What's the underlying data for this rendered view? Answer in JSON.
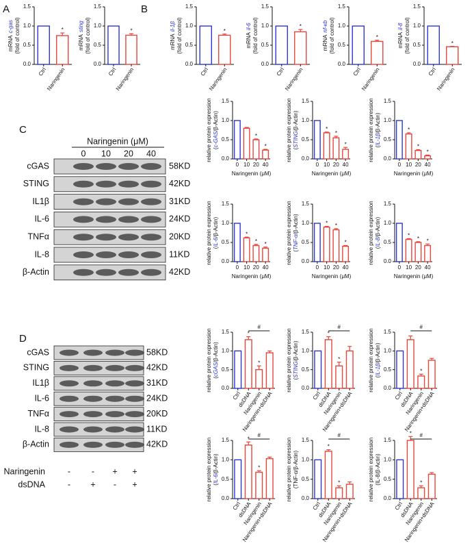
{
  "panels": [
    "A",
    "B",
    "C",
    "D"
  ],
  "blot_c": {
    "header": "Naringenin (μM)",
    "lanes": [
      "0",
      "10",
      "20",
      "40"
    ],
    "rows": [
      {
        "protein": "cGAS",
        "size": "58KD"
      },
      {
        "protein": "STING",
        "size": "42KD"
      },
      {
        "protein": "IL1β",
        "size": "31KD"
      },
      {
        "protein": "IL-6",
        "size": "24KD"
      },
      {
        "protein": "TNFα",
        "size": "20KD"
      },
      {
        "protein": "IL-8",
        "size": "11KD"
      },
      {
        "protein": "β-Actin",
        "size": "42KD"
      }
    ]
  },
  "blot_d": {
    "rows": [
      {
        "protein": "cGAS",
        "size": "58KD"
      },
      {
        "protein": "STING",
        "size": "42KD"
      },
      {
        "protein": "IL1β",
        "size": "31KD"
      },
      {
        "protein": "IL-6",
        "size": "24KD"
      },
      {
        "protein": "TNFα",
        "size": "20KD"
      },
      {
        "protein": "IL-8",
        "size": "11KD"
      },
      {
        "protein": "β-Actin",
        "size": "42KD"
      }
    ],
    "treatments": [
      {
        "name": "Naringenin",
        "signs": [
          "-",
          "-",
          "+",
          "+"
        ]
      },
      {
        "name": "dsDNA",
        "signs": [
          "-",
          "+",
          "-",
          "+"
        ]
      }
    ]
  },
  "chart_data": [
    {
      "type": "bar",
      "ylabel": [
        [
          {
            "text": "mRNA"
          },
          {
            "text": "c-gas",
            "italic": true
          }
        ],
        [
          {
            "text": "(fold of control)"
          }
        ]
      ],
      "categories": [
        "Ctrl",
        "Naringenin"
      ],
      "values": [
        1,
        0.75
      ],
      "errors": [
        0,
        0.07
      ],
      "significance": [
        null,
        "*"
      ],
      "colors": [
        "#2b35d8",
        "#e8443a"
      ],
      "ylim": [
        0,
        1.5
      ],
      "yticks": [
        {
          "value": 0,
          "label": "0.0"
        },
        0.5,
        {
          "value": 1,
          "label": "1.0"
        },
        1.5
      ]
    },
    {
      "type": "bar",
      "ylabel": [
        [
          {
            "text": "mRNA"
          },
          {
            "text": "sting",
            "italic": true
          }
        ],
        [
          {
            "text": "(fold of control)"
          }
        ]
      ],
      "categories": [
        "Ctrl",
        "Naringenin"
      ],
      "values": [
        1,
        0.76
      ],
      "errors": [
        0,
        0.04
      ],
      "significance": [
        null,
        "*"
      ],
      "colors": [
        "#2b35d8",
        "#e8443a"
      ],
      "ylim": [
        0,
        1.5
      ],
      "yticks": [
        {
          "value": 0,
          "label": "0.0"
        },
        0.5,
        {
          "value": 1,
          "label": "1.0"
        },
        1.5
      ]
    },
    {
      "type": "bar",
      "ylabel": [
        [
          {
            "text": "mRNA"
          },
          {
            "text": "il-1β",
            "italic": true
          }
        ],
        [
          {
            "text": "(fold of control)"
          }
        ]
      ],
      "categories": [
        "Ctrl",
        "Naringenin"
      ],
      "values": [
        1,
        0.76
      ],
      "errors": [
        0,
        0.03
      ],
      "significance": [
        null,
        "*"
      ],
      "colors": [
        "#2b35d8",
        "#e8443a"
      ],
      "ylim": [
        0,
        1.5
      ],
      "yticks": [
        {
          "value": 0,
          "label": "0.0"
        },
        0.5,
        {
          "value": 1,
          "label": "1.0"
        },
        1.5
      ]
    },
    {
      "type": "bar",
      "ylabel": [
        [
          {
            "text": "mRNA"
          },
          {
            "text": "il-6",
            "italic": true
          }
        ],
        [
          {
            "text": "(fold of control)"
          }
        ]
      ],
      "categories": [
        "Ctrl",
        "Naringenin"
      ],
      "values": [
        1,
        0.85
      ],
      "errors": [
        0,
        0.06
      ],
      "significance": [
        null,
        "*"
      ],
      "colors": [
        "#2b35d8",
        "#e8443a"
      ],
      "ylim": [
        0,
        1.5
      ],
      "yticks": [
        {
          "value": 0,
          "label": "0.0"
        },
        0.5,
        {
          "value": 1,
          "label": "1.0"
        },
        1.5
      ]
    },
    {
      "type": "bar",
      "ylabel": [
        [
          {
            "text": "mRNA"
          },
          {
            "text": "nf-κb",
            "italic": true
          }
        ],
        [
          {
            "text": "(fold of control)"
          }
        ]
      ],
      "categories": [
        "Ctrl",
        "Naringenin"
      ],
      "values": [
        1,
        0.6
      ],
      "errors": [
        0,
        0.03
      ],
      "significance": [
        null,
        "*"
      ],
      "colors": [
        "#2b35d8",
        "#e8443a"
      ],
      "ylim": [
        0,
        1.5
      ],
      "yticks": [
        {
          "value": 0,
          "label": "0.0"
        },
        0.5,
        {
          "value": 1,
          "label": "1.0"
        },
        1.5
      ]
    },
    {
      "type": "bar",
      "ylabel": [
        [
          {
            "text": "mRNA"
          },
          {
            "text": "il-8",
            "italic": true
          }
        ],
        [
          {
            "text": "(fold of control)"
          }
        ]
      ],
      "categories": [
        "Ctrl",
        "Naringenin"
      ],
      "values": [
        1,
        0.46
      ],
      "errors": [
        0,
        0.01
      ],
      "significance": [
        null,
        "*"
      ],
      "colors": [
        "#2b35d8",
        "#e8443a"
      ],
      "ylim": [
        0,
        1.5
      ],
      "yticks": [
        {
          "value": 0,
          "label": "0.0"
        },
        0.5,
        {
          "value": 1,
          "label": "1.0"
        },
        1.5
      ]
    },
    {
      "type": "bar",
      "ylabel": [
        [
          {
            "text": "relative protein expression"
          }
        ],
        [
          {
            "text": "("
          },
          {
            "text": "c-GAS",
            "italic": true
          },
          {
            "text": "/β-Actin)"
          }
        ]
      ],
      "xlabel": "Naringenin (μM)",
      "categories": [
        "0",
        "10",
        "20",
        "40"
      ],
      "values": [
        1,
        0.8,
        0.5,
        0.23
      ],
      "errors": [
        0,
        0.02,
        0.02,
        0.02
      ],
      "significance": [
        null,
        null,
        "*",
        "*"
      ],
      "colors": [
        "#2b35d8",
        "#e8443a",
        "#e8443a",
        "#e8443a"
      ],
      "ylim": [
        0,
        1.5
      ],
      "yticks": [
        {
          "value": 0,
          "label": "0.0"
        },
        0.5,
        {
          "value": 1,
          "label": "1.0"
        },
        1.5
      ]
    },
    {
      "type": "bar",
      "ylabel": [
        [
          {
            "text": "relative protein expression"
          }
        ],
        [
          {
            "text": "("
          },
          {
            "text": "STING",
            "italic": true
          },
          {
            "text": "/β-Actin)"
          }
        ]
      ],
      "xlabel": "Naringenin (μM)",
      "categories": [
        "0",
        "10",
        "20",
        "40"
      ],
      "values": [
        1,
        0.68,
        0.55,
        0.25
      ],
      "errors": [
        0,
        0.02,
        0.04,
        0.05
      ],
      "significance": [
        null,
        "*",
        "*",
        "*"
      ],
      "colors": [
        "#2b35d8",
        "#e8443a",
        "#e8443a",
        "#e8443a"
      ],
      "ylim": [
        0,
        1.5
      ],
      "yticks": [
        {
          "value": 0,
          "label": "0.0"
        },
        0.5,
        {
          "value": 1,
          "label": "1.0"
        },
        1.5
      ]
    },
    {
      "type": "bar",
      "ylabel": [
        [
          {
            "text": "relative protein expression"
          }
        ],
        [
          {
            "text": "("
          },
          {
            "text": "IL-1β",
            "italic": true
          },
          {
            "text": "/β-Actin)"
          }
        ]
      ],
      "xlabel": "Naringenin (μM)",
      "categories": [
        "0",
        "10",
        "20",
        "40"
      ],
      "values": [
        1,
        0.65,
        0.22,
        0.08
      ],
      "errors": [
        0,
        0.03,
        0.02,
        0.02
      ],
      "significance": [
        null,
        "*",
        "*",
        "*"
      ],
      "colors": [
        "#2b35d8",
        "#e8443a",
        "#e8443a",
        "#e8443a"
      ],
      "ylim": [
        0,
        1.5
      ],
      "yticks": [
        {
          "value": 0,
          "label": "0.0"
        },
        0.5,
        {
          "value": 1,
          "label": "1.0"
        },
        1.5
      ]
    },
    {
      "type": "bar",
      "ylabel": [
        [
          {
            "text": "relative protein expression"
          }
        ],
        [
          {
            "text": "("
          },
          {
            "text": "IL-6",
            "italic": true
          },
          {
            "text": "/β-Actin)"
          }
        ]
      ],
      "xlabel": "Naringenin (μM)",
      "categories": [
        "0",
        "10",
        "20",
        "40"
      ],
      "values": [
        1,
        0.62,
        0.42,
        0.35
      ],
      "errors": [
        0,
        0.02,
        0.03,
        0.03
      ],
      "significance": [
        null,
        "*",
        "*",
        "*"
      ],
      "colors": [
        "#2b35d8",
        "#e8443a",
        "#e8443a",
        "#e8443a"
      ],
      "ylim": [
        0,
        1.5
      ],
      "yticks": [
        {
          "value": 0,
          "label": "0.0"
        },
        0.5,
        {
          "value": 1,
          "label": "1.0"
        },
        1.5
      ]
    },
    {
      "type": "bar",
      "ylabel": [
        [
          {
            "text": "relative protein expression"
          }
        ],
        [
          {
            "text": "("
          },
          {
            "text": "TNF-α",
            "italic": true
          },
          {
            "text": "/β-Actin)"
          }
        ]
      ],
      "xlabel": "Naringenin (μM)",
      "categories": [
        "0",
        "10",
        "20",
        "40"
      ],
      "values": [
        1,
        0.9,
        0.83,
        0.4
      ],
      "errors": [
        0,
        0.02,
        0.03,
        0.02
      ],
      "significance": [
        null,
        "*",
        "*",
        "*"
      ],
      "colors": [
        "#2b35d8",
        "#e8443a",
        "#e8443a",
        "#e8443a"
      ],
      "ylim": [
        0,
        1.5
      ],
      "yticks": [
        {
          "value": 0,
          "label": "0.0"
        },
        0.5,
        {
          "value": 1,
          "label": "1.0"
        },
        1.5
      ]
    },
    {
      "type": "bar",
      "ylabel": [
        [
          {
            "text": "relative protein expression"
          }
        ],
        [
          {
            "text": "("
          },
          {
            "text": "IL-8",
            "italic": true
          },
          {
            "text": "/β-Actin)"
          }
        ]
      ],
      "xlabel": "Naringenin (μM)",
      "categories": [
        "0",
        "10",
        "20",
        "40"
      ],
      "values": [
        1,
        0.58,
        0.5,
        0.42
      ],
      "errors": [
        0,
        0.02,
        0.02,
        0.04
      ],
      "significance": [
        null,
        "*",
        "*",
        "*"
      ],
      "colors": [
        "#2b35d8",
        "#e8443a",
        "#e8443a",
        "#e8443a"
      ],
      "ylim": [
        0,
        1.5
      ],
      "yticks": [
        {
          "value": 0,
          "label": "0.0"
        },
        0.5,
        {
          "value": 1,
          "label": "1.0"
        },
        1.5
      ]
    },
    {
      "type": "bar",
      "ylabel": [
        [
          {
            "text": "relative protein expression"
          }
        ],
        [
          {
            "text": "("
          },
          {
            "text": "cGAS",
            "italic": true
          },
          {
            "text": "/β-Actin)"
          }
        ]
      ],
      "categories": [
        "Ctrl",
        "dsDNA",
        "Naringenin",
        "Naringenin+dsDNA"
      ],
      "values": [
        1,
        1.3,
        0.5,
        0.95
      ],
      "errors": [
        0,
        0.08,
        0.1,
        0.05
      ],
      "significance": [
        null,
        "*",
        "*",
        null
      ],
      "bracket_label": "#",
      "colors": [
        "#2b35d8",
        "#e8443a",
        "#e8443a",
        "#e8443a"
      ],
      "ylim": [
        0,
        1.5
      ],
      "yticks": [
        {
          "value": 0,
          "label": "0.0"
        },
        0.5,
        {
          "value": 1,
          "label": "1.0"
        },
        1.5
      ]
    },
    {
      "type": "bar",
      "ylabel": [
        [
          {
            "text": "relative protein expression"
          }
        ],
        [
          {
            "text": "("
          },
          {
            "text": "STING",
            "italic": true
          },
          {
            "text": "/β-Actin)"
          }
        ]
      ],
      "categories": [
        "Ctrl",
        "dsDNA",
        "Naringenin",
        "Naringenin+dsDNA"
      ],
      "values": [
        1,
        1.3,
        0.6,
        1.0
      ],
      "errors": [
        0,
        0.08,
        0.1,
        0.12
      ],
      "significance": [
        null,
        "*",
        "*",
        null
      ],
      "bracket_label": "#",
      "colors": [
        "#2b35d8",
        "#e8443a",
        "#e8443a",
        "#e8443a"
      ],
      "ylim": [
        0,
        1.5
      ],
      "yticks": [
        {
          "value": 0,
          "label": "0.0"
        },
        0.5,
        {
          "value": 1,
          "label": "1.0"
        },
        1.5
      ]
    },
    {
      "type": "bar",
      "ylabel": [
        [
          {
            "text": "relative protein expression"
          }
        ],
        [
          {
            "text": "("
          },
          {
            "text": "IL-1β",
            "italic": true
          },
          {
            "text": "/β-Actin)"
          }
        ]
      ],
      "categories": [
        "Ctrl",
        "dsDNA",
        "Naringenin",
        "Naringenin+dsDNA"
      ],
      "values": [
        1,
        1.3,
        0.33,
        0.75
      ],
      "errors": [
        0,
        0.1,
        0.05,
        0.05
      ],
      "significance": [
        null,
        null,
        "*",
        null
      ],
      "bracket_label": "#",
      "colors": [
        "#2b35d8",
        "#e8443a",
        "#e8443a",
        "#e8443a"
      ],
      "ylim": [
        0,
        1.5
      ],
      "yticks": [
        {
          "value": 0,
          "label": "0.0"
        },
        0.5,
        {
          "value": 1,
          "label": "1.0"
        },
        1.5
      ]
    },
    {
      "type": "bar",
      "ylabel": [
        [
          {
            "text": "relative protein expression"
          }
        ],
        [
          {
            "text": "("
          },
          {
            "text": "IL-6",
            "italic": true
          },
          {
            "text": "/β-Actin)"
          }
        ]
      ],
      "categories": [
        "Ctrl",
        "dsDNA",
        "Naringenin",
        "Naringenin+dsDNA"
      ],
      "values": [
        1,
        1.38,
        0.68,
        1.03
      ],
      "errors": [
        0,
        0.08,
        0.04,
        0.04
      ],
      "significance": [
        null,
        "*",
        "*",
        null
      ],
      "bracket_label": "#",
      "colors": [
        "#2b35d8",
        "#e8443a",
        "#e8443a",
        "#e8443a"
      ],
      "ylim": [
        0,
        1.5
      ],
      "yticks": [
        {
          "value": 0,
          "label": "0.0"
        },
        0.5,
        {
          "value": 1,
          "label": "1.0"
        },
        1.5
      ]
    },
    {
      "type": "bar",
      "ylabel": [
        [
          {
            "text": "relative protein expression"
          }
        ],
        [
          {
            "text": "(TNF-α/β-Actin)"
          }
        ]
      ],
      "categories": [
        "Ctrl",
        "dsDNA",
        "Naringenin",
        "Naringenin+dsDNA"
      ],
      "values": [
        1,
        1.22,
        0.28,
        0.37
      ],
      "errors": [
        0,
        0.04,
        0.05,
        0.06
      ],
      "significance": [
        null,
        "*",
        "*",
        null
      ],
      "bracket_label": "#",
      "colors": [
        "#2b35d8",
        "#e8443a",
        "#e8443a",
        "#e8443a"
      ],
      "ylim": [
        0,
        1.5
      ],
      "yticks": [
        {
          "value": 0,
          "label": "0.0"
        },
        0.5,
        {
          "value": 1,
          "label": "1.0"
        },
        1.5
      ]
    },
    {
      "type": "bar",
      "ylabel": [
        [
          {
            "text": "relative protein expression"
          }
        ],
        [
          {
            "text": "(IL-8/β-Actin)"
          }
        ]
      ],
      "categories": [
        "Ctrl",
        "dsDNA",
        "Naringenin",
        "Naringenin+dsDNA"
      ],
      "values": [
        1,
        1.5,
        0.28,
        0.63
      ],
      "errors": [
        0,
        0.1,
        0.05,
        0.04
      ],
      "significance": [
        null,
        "*",
        "*",
        null
      ],
      "bracket_label": "#",
      "colors": [
        "#2b35d8",
        "#e8443a",
        "#e8443a",
        "#e8443a"
      ],
      "ylim": [
        0,
        1.5
      ],
      "yticks": [
        {
          "value": 0,
          "label": "0.0"
        },
        0.5,
        {
          "value": 1,
          "label": "1.0"
        },
        1.5
      ]
    }
  ]
}
